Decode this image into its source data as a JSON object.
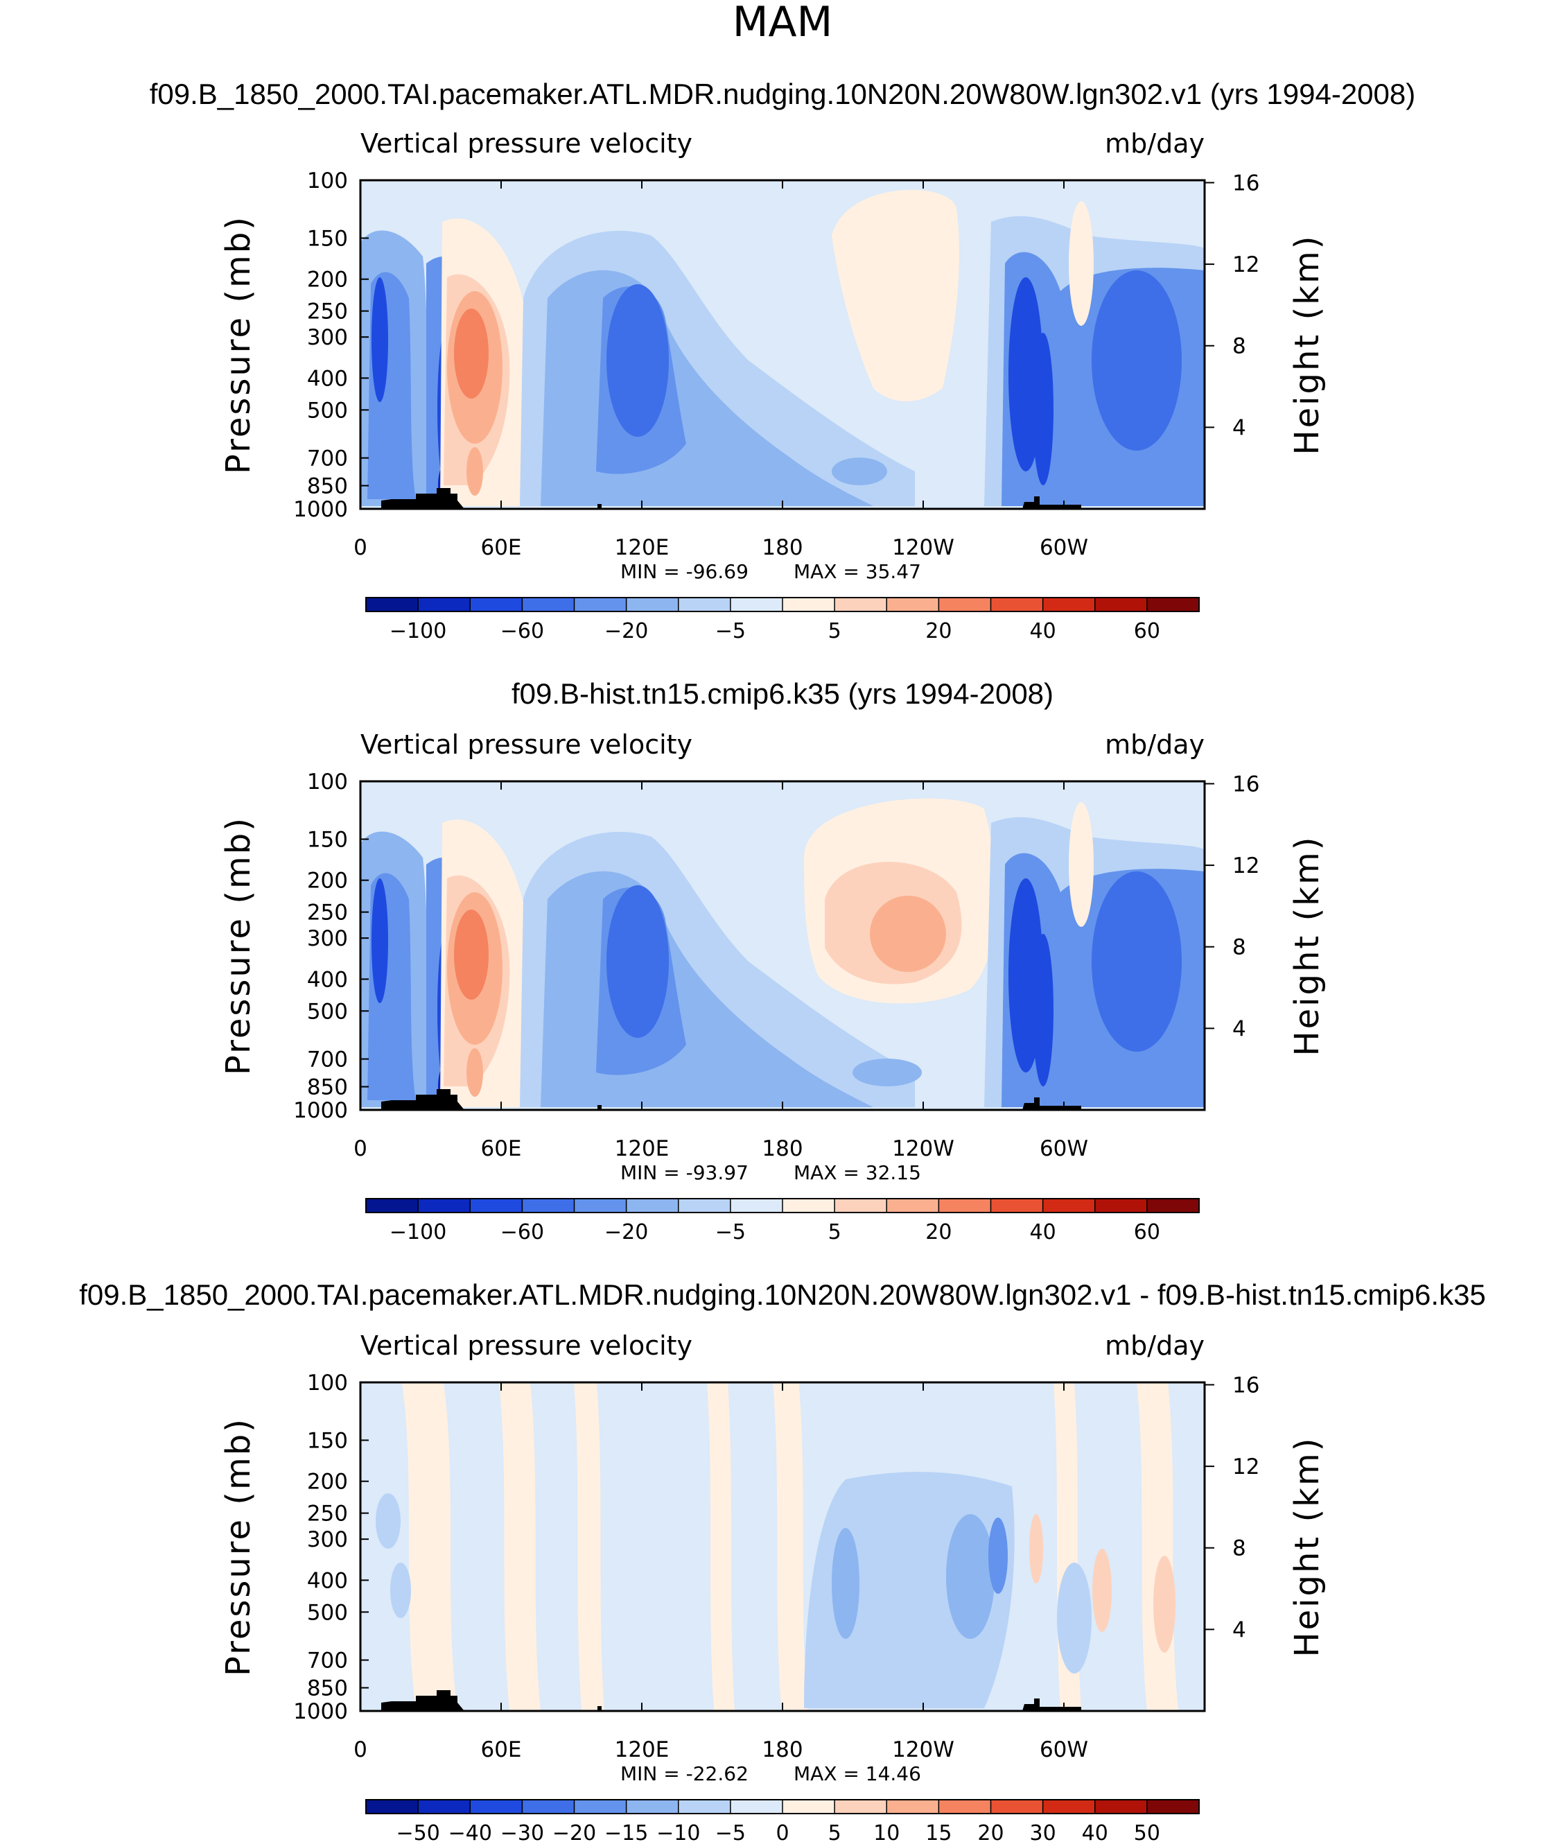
{
  "title": "MAM",
  "colors": {
    "pos": [
      "#fff0e2",
      "#fdd2bc",
      "#fab08f",
      "#f58360",
      "#ea5234",
      "#d22a14",
      "#b01208",
      "#7e0606"
    ],
    "neg": [
      "#dceaf9",
      "#b8d3f6",
      "#8db5f0",
      "#6393ec",
      "#3e6ee8",
      "#1f4ae0",
      "#0b28bf",
      "#031590"
    ],
    "terrain": "#000000"
  },
  "chart_data": [
    {
      "type": "heatmap",
      "case": "f09.B_1850_2000.TAI.pacemaker.ATL.MDR.nudging.10N20N.20W80W.lgn302.v1 (yrs 1994-2008)",
      "variable": "Vertical pressure velocity",
      "units": "mb/day",
      "ylabel": "Pressure (mb)",
      "ylabel_right": "Height (km)",
      "yticks": [
        "100",
        "150",
        "200",
        "250",
        "300",
        "400",
        "500",
        "700",
        "850",
        "1000"
      ],
      "yticks_right": [
        "16",
        "12",
        "8",
        "4"
      ],
      "xticks": [
        "0",
        "60E",
        "120E",
        "180",
        "120W",
        "60W"
      ],
      "min_label": "MIN = -96.69",
      "max_label": "MAX = 35.47",
      "colorbar_labels": [
        "-100",
        "-60",
        "-20",
        "-5",
        "5",
        "20",
        "40",
        "60"
      ],
      "colorbar_levels": 16
    },
    {
      "type": "heatmap",
      "case": "f09.B-hist.tn15.cmip6.k35 (yrs 1994-2008)",
      "variable": "Vertical pressure velocity",
      "units": "mb/day",
      "ylabel": "Pressure (mb)",
      "ylabel_right": "Height (km)",
      "yticks": [
        "100",
        "150",
        "200",
        "250",
        "300",
        "400",
        "500",
        "700",
        "850",
        "1000"
      ],
      "yticks_right": [
        "16",
        "12",
        "8",
        "4"
      ],
      "xticks": [
        "0",
        "60E",
        "120E",
        "180",
        "120W",
        "60W"
      ],
      "min_label": "MIN = -93.97",
      "max_label": "MAX = 32.15",
      "colorbar_labels": [
        "-100",
        "-60",
        "-20",
        "-5",
        "5",
        "20",
        "40",
        "60"
      ],
      "colorbar_levels": 16
    },
    {
      "type": "heatmap",
      "case": "f09.B_1850_2000.TAI.pacemaker.ATL.MDR.nudging.10N20N.20W80W.lgn302.v1 - f09.B-hist.tn15.cmip6.k35",
      "variable": "Vertical pressure velocity",
      "units": "mb/day",
      "ylabel": "Pressure (mb)",
      "ylabel_right": "Height (km)",
      "yticks": [
        "100",
        "150",
        "200",
        "250",
        "300",
        "400",
        "500",
        "700",
        "850",
        "1000"
      ],
      "yticks_right": [
        "16",
        "12",
        "8",
        "4"
      ],
      "xticks": [
        "0",
        "60E",
        "120E",
        "180",
        "120W",
        "60W"
      ],
      "min_label": "MIN = -22.62",
      "max_label": "MAX = 14.46",
      "colorbar_labels": [
        "-50",
        "-40",
        "-30",
        "-20",
        "-15",
        "-10",
        "-5",
        "0",
        "5",
        "10",
        "15",
        "20",
        "30",
        "40",
        "50"
      ],
      "colorbar_levels": 16
    }
  ]
}
